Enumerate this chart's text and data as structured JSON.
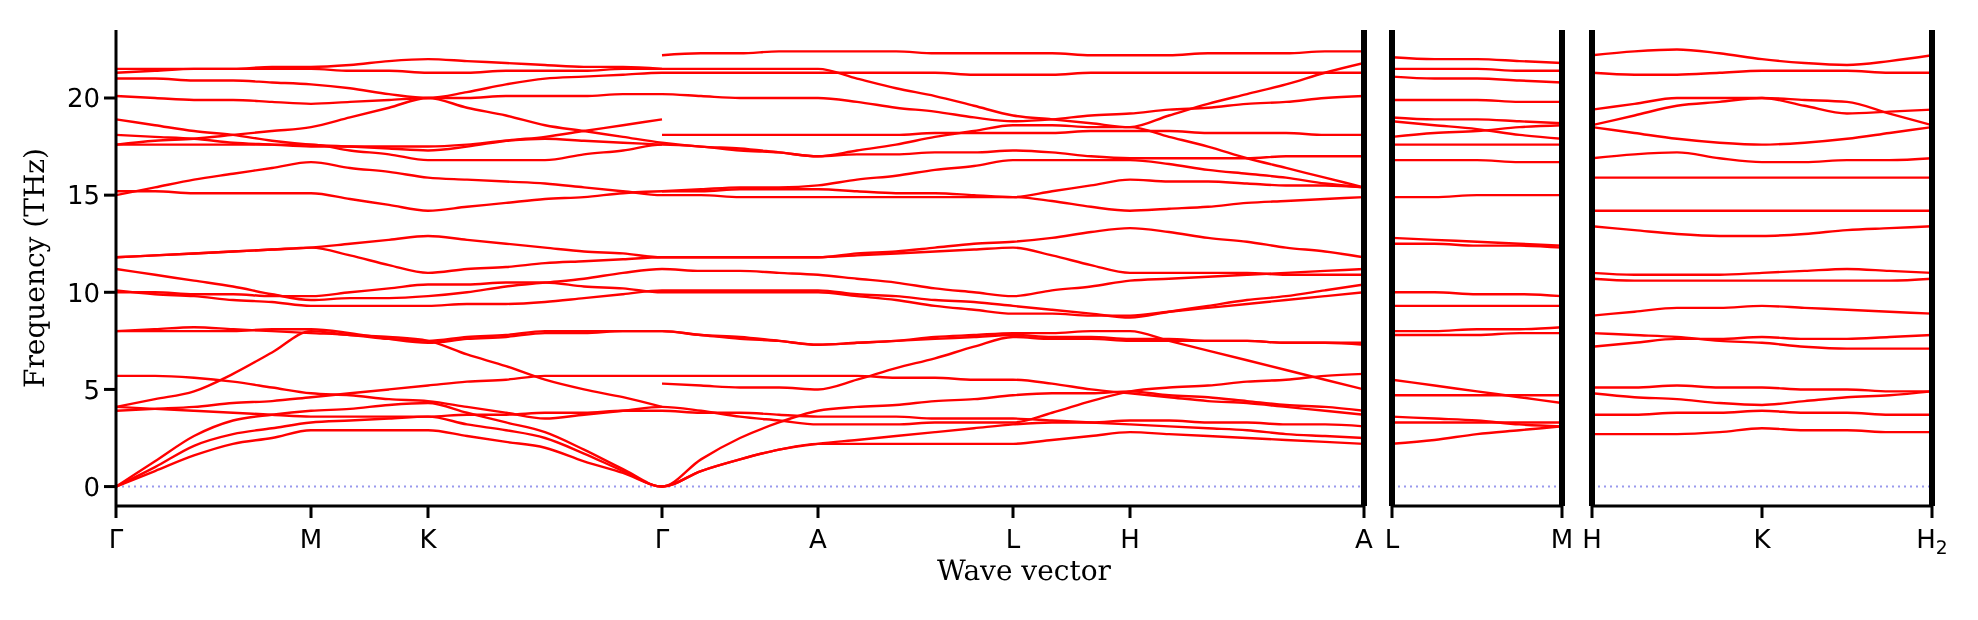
{
  "chart_data": [
    {
      "type": "line",
      "xlabel": "Wave vector",
      "ylabel": "Frequency (THz)",
      "categories": [
        "Γ",
        null,
        null,
        null,
        null,
        "M",
        null,
        null,
        "K",
        null,
        null,
        null,
        null,
        null,
        "Γ",
        null,
        null,
        null,
        "A",
        null,
        null,
        null,
        null,
        "L",
        null,
        null,
        "H",
        null,
        null,
        null,
        null,
        null,
        "A"
      ],
      "ylim": [
        -1,
        23.5
      ],
      "yticks": [
        0,
        5,
        10,
        15,
        20
      ],
      "marker": "none",
      "line_style": "solid",
      "ref_lines": [
        {
          "axis": "y",
          "value": 0,
          "color": "#9999ee",
          "line_style": "dotted"
        }
      ],
      "series": [
        {
          "color": "#ff0000",
          "values": [
            0,
            0.8,
            1.6,
            2.2,
            2.5,
            2.9,
            2.9,
            2.9,
            2.9,
            2.6,
            2.3,
            2.0,
            1.3,
            0.7,
            0,
            0.8,
            1.4,
            1.9,
            2.2,
            2.2,
            2.2,
            2.2,
            2.2,
            2.2,
            2.4,
            2.6,
            2.8,
            2.7,
            2.6,
            2.5,
            2.4,
            2.3,
            2.2
          ]
        },
        {
          "color": "#ff0000",
          "values": [
            0,
            1.0,
            2.1,
            2.7,
            3.0,
            3.3,
            3.4,
            3.5,
            3.6,
            3.2,
            2.9,
            2.5,
            1.7,
            0.8,
            0,
            0.8,
            1.4,
            1.9,
            2.2,
            2.4,
            2.6,
            2.8,
            3.0,
            3.2,
            3.3,
            3.3,
            3.4,
            3.4,
            3.3,
            3.3,
            3.2,
            3.2,
            3.1
          ]
        },
        {
          "color": "#ff0000",
          "values": [
            0,
            1.3,
            2.6,
            3.4,
            3.7,
            3.9,
            4.0,
            4.2,
            4.3,
            3.8,
            3.3,
            2.8,
            1.9,
            0.9,
            0,
            1.4,
            2.5,
            3.3,
            3.9,
            4.1,
            4.2,
            4.4,
            4.5,
            4.7,
            4.8,
            4.8,
            4.9,
            4.7,
            4.6,
            4.4,
            4.2,
            4.1,
            3.9
          ]
        },
        {
          "color": "#ff0000",
          "values": [
            4.1,
            4.0,
            3.9,
            3.8,
            3.7,
            3.6,
            3.6,
            3.6,
            3.6,
            3.7,
            3.7,
            3.8,
            3.8,
            3.9,
            3.9,
            3.8,
            3.8,
            3.7,
            3.6,
            3.6,
            3.6,
            3.5,
            3.5,
            3.5,
            3.4,
            3.3,
            3.2,
            3.1,
            3.0,
            2.9,
            2.7,
            2.6,
            2.5
          ]
        },
        {
          "color": "#ff0000",
          "values": [
            3.9,
            4.0,
            4.1,
            4.3,
            4.4,
            4.6,
            4.8,
            5.0,
            5.2,
            5.4,
            5.5,
            5.7,
            5.7,
            5.7,
            5.7,
            5.7,
            5.7,
            5.7,
            5.7,
            5.7,
            5.6,
            5.6,
            5.5,
            5.5,
            5.3,
            5.0,
            4.8,
            4.6,
            4.4,
            4.3,
            4.1,
            3.9,
            3.7
          ]
        },
        {
          "color": "#ff0000",
          "values": [
            5.7,
            5.7,
            5.6,
            5.4,
            5.1,
            4.8,
            4.7,
            4.5,
            4.4,
            4.1,
            3.8,
            3.5,
            3.7,
            3.9,
            4.1,
            3.9,
            3.6,
            3.4,
            3.2,
            3.2,
            3.2,
            3.3,
            3.3,
            3.3,
            3.8,
            4.4,
            4.9,
            5.1,
            5.2,
            5.4,
            5.5,
            5.7,
            5.8
          ]
        },
        {
          "color": "#ff0000",
          "values": [
            4.1,
            4.5,
            4.9,
            5.8,
            6.9,
            8.0,
            7.8,
            7.7,
            7.5,
            6.8,
            6.2,
            5.5,
            5.0,
            4.6,
            4.1,
            null,
            null,
            null,
            null,
            null,
            null,
            null,
            null,
            null,
            null,
            null,
            null,
            null,
            null,
            null,
            null,
            null,
            null
          ]
        },
        {
          "color": "#ff0000",
          "values": [
            8.0,
            8.0,
            8.0,
            8.0,
            8.1,
            8.1,
            7.9,
            7.6,
            7.4,
            7.6,
            7.7,
            7.9,
            7.9,
            8.0,
            8.0,
            7.8,
            7.7,
            7.5,
            7.3,
            7.4,
            7.5,
            7.6,
            7.7,
            7.8,
            7.7,
            7.7,
            7.6,
            7.6,
            7.5,
            7.5,
            7.4,
            7.4,
            7.3
          ]
        },
        {
          "color": "#ff0000",
          "values": [
            8.0,
            8.1,
            8.2,
            8.1,
            8.0,
            7.9,
            7.8,
            7.6,
            7.5,
            7.7,
            7.8,
            8.0,
            8.0,
            8.0,
            8.0,
            7.8,
            7.6,
            7.5,
            7.3,
            7.4,
            7.5,
            7.7,
            7.8,
            7.9,
            7.9,
            8.0,
            8.0,
            7.5,
            7.0,
            6.5,
            6.0,
            5.5,
            5.0
          ]
        },
        {
          "color": "#ff0000",
          "values": [
            10.1,
            9.9,
            9.8,
            9.6,
            9.5,
            9.3,
            9.3,
            9.3,
            9.3,
            9.4,
            9.4,
            9.5,
            9.7,
            9.9,
            10.1,
            10.1,
            10.1,
            10.1,
            10.1,
            9.9,
            9.8,
            9.6,
            9.5,
            9.3,
            9.1,
            8.9,
            8.7,
            9.0,
            9.3,
            9.6,
            9.8,
            10.1,
            10.4
          ]
        },
        {
          "color": "#ff0000",
          "values": [
            10.0,
            10.0,
            9.9,
            9.9,
            9.8,
            9.8,
            10.0,
            10.2,
            10.4,
            10.4,
            10.5,
            10.5,
            10.3,
            10.2,
            10.0,
            10.0,
            10.0,
            10.0,
            10.0,
            9.8,
            9.6,
            9.3,
            9.1,
            8.9,
            8.9,
            8.8,
            8.8,
            9.0,
            9.2,
            9.4,
            9.6,
            9.8,
            10.0
          ]
        },
        {
          "color": "#ff0000",
          "values": [
            11.2,
            10.9,
            10.6,
            10.3,
            9.9,
            9.6,
            9.7,
            9.7,
            9.8,
            10.0,
            10.3,
            10.5,
            10.7,
            11.0,
            11.2,
            11.1,
            11.1,
            11.0,
            10.9,
            10.7,
            10.5,
            10.2,
            10.0,
            9.8,
            10.1,
            10.3,
            10.6,
            10.7,
            10.8,
            10.9,
            11.0,
            11.1,
            11.2
          ]
        },
        {
          "color": "#ff0000",
          "values": [
            11.8,
            11.9,
            12.0,
            12.1,
            12.2,
            12.3,
            11.9,
            11.4,
            11.0,
            11.2,
            11.3,
            11.5,
            11.6,
            11.7,
            11.8,
            11.8,
            11.8,
            11.8,
            11.8,
            11.9,
            12.0,
            12.1,
            12.2,
            12.3,
            11.9,
            11.4,
            11.0,
            11.0,
            11.0,
            11.0,
            10.9,
            10.9,
            10.9
          ]
        },
        {
          "color": "#ff0000",
          "values": [
            11.8,
            11.9,
            12.0,
            12.1,
            12.2,
            12.3,
            12.5,
            12.7,
            12.9,
            12.7,
            12.5,
            12.3,
            12.1,
            12.0,
            11.8,
            11.8,
            11.8,
            11.8,
            11.8,
            12.0,
            12.1,
            12.3,
            12.5,
            12.6,
            12.8,
            13.1,
            13.3,
            13.1,
            12.8,
            12.6,
            12.3,
            12.1,
            11.8
          ]
        },
        {
          "color": "#ff0000",
          "values": [
            15.2,
            15.2,
            15.1,
            15.1,
            15.1,
            15.1,
            14.8,
            14.5,
            14.2,
            14.4,
            14.6,
            14.8,
            14.9,
            15.1,
            15.2,
            15.2,
            15.3,
            15.3,
            15.3,
            15.2,
            15.1,
            15.1,
            15.0,
            14.9,
            15.2,
            15.5,
            15.8,
            15.7,
            15.7,
            15.6,
            15.5,
            15.5,
            15.4
          ]
        },
        {
          "color": "#ff0000",
          "values": [
            15.0,
            15.4,
            15.8,
            16.1,
            16.4,
            16.7,
            16.4,
            16.2,
            15.9,
            15.8,
            15.7,
            15.6,
            15.4,
            15.2,
            15.0,
            15.0,
            14.9,
            14.9,
            14.9,
            14.9,
            14.9,
            14.9,
            14.9,
            14.9,
            14.7,
            14.4,
            14.2,
            14.3,
            14.4,
            14.6,
            14.7,
            14.8,
            14.9
          ]
        },
        {
          "color": "#ff0000",
          "values": [
            17.6,
            17.6,
            17.6,
            17.6,
            17.6,
            17.6,
            17.3,
            17.1,
            16.8,
            16.8,
            16.8,
            16.8,
            17.1,
            17.3,
            17.6,
            17.5,
            17.3,
            17.2,
            17.0,
            17.1,
            17.1,
            17.2,
            17.2,
            17.3,
            17.2,
            17.0,
            16.9,
            16.9,
            16.9,
            16.9,
            17.0,
            17.0,
            17.0
          ]
        },
        {
          "color": "#ff0000",
          "values": [
            18.1,
            18.0,
            17.9,
            17.7,
            17.6,
            17.5,
            17.5,
            17.5,
            17.5,
            17.6,
            17.8,
            17.9,
            17.8,
            17.7,
            17.6,
            null,
            null,
            null,
            null,
            null,
            null,
            null,
            null,
            null,
            null,
            null,
            null,
            null,
            null,
            null,
            null,
            null,
            null
          ]
        },
        {
          "color": "#ff0000",
          "values": [
            18.9,
            18.6,
            18.3,
            18.1,
            17.8,
            17.6,
            17.5,
            17.4,
            17.3,
            17.5,
            17.8,
            18.0,
            18.3,
            18.6,
            18.9,
            null,
            null,
            null,
            null,
            null,
            null,
            null,
            null,
            null,
            null,
            null,
            null,
            null,
            null,
            null,
            null,
            null,
            null
          ]
        },
        {
          "color": "#ff0000",
          "values": [
            17.6,
            17.8,
            17.9,
            18.1,
            18.3,
            18.5,
            19.0,
            19.5,
            20.0,
            19.5,
            19.1,
            18.6,
            18.3,
            18.0,
            17.7,
            17.5,
            17.4,
            17.2,
            17.0,
            17.3,
            17.6,
            18.0,
            18.3,
            18.6,
            18.6,
            18.5,
            18.5,
            18.0,
            17.5,
            16.9,
            16.4,
            15.9,
            15.4
          ]
        },
        {
          "color": "#ff0000",
          "values": [
            20.1,
            20.0,
            19.9,
            19.9,
            19.8,
            19.7,
            19.8,
            19.9,
            20.0,
            20.0,
            20.1,
            20.1,
            20.1,
            20.2,
            20.2,
            20.1,
            20.0,
            20.0,
            20.0,
            19.8,
            19.5,
            19.3,
            19.0,
            18.8,
            18.9,
            19.1,
            19.2,
            19.4,
            19.5,
            19.7,
            19.8,
            20.0,
            20.1
          ]
        },
        {
          "color": "#ff0000",
          "values": [
            21.0,
            21.0,
            20.9,
            20.9,
            20.8,
            20.7,
            20.5,
            20.2,
            20.0,
            20.3,
            20.7,
            21.0,
            21.1,
            21.2,
            21.3,
            21.3,
            21.3,
            21.3,
            21.3,
            21.3,
            21.3,
            21.3,
            21.2,
            21.2,
            21.2,
            21.3,
            21.3,
            21.3,
            21.3,
            21.3,
            21.3,
            21.3,
            21.3
          ]
        },
        {
          "color": "#ff0000",
          "values": [
            21.5,
            21.5,
            21.5,
            21.5,
            21.5,
            21.5,
            21.4,
            21.4,
            21.3,
            21.3,
            21.4,
            21.4,
            21.4,
            21.5,
            21.5,
            21.5,
            21.5,
            21.5,
            21.5,
            21.0,
            20.5,
            20.1,
            19.6,
            19.1,
            18.9,
            18.7,
            18.5,
            19.1,
            19.7,
            20.2,
            20.7,
            21.3,
            21.8
          ]
        },
        {
          "color": "#ff0000",
          "values": [
            21.3,
            21.4,
            21.5,
            21.5,
            21.6,
            21.6,
            21.7,
            21.9,
            22.0,
            21.9,
            21.8,
            21.7,
            21.6,
            21.6,
            21.5,
            null,
            null,
            null,
            null,
            null,
            null,
            null,
            null,
            null,
            null,
            null,
            null,
            null,
            null,
            null,
            null,
            null,
            null
          ]
        },
        {
          "color": "#ff0000",
          "values": [
            null,
            null,
            null,
            null,
            null,
            null,
            null,
            null,
            null,
            null,
            null,
            null,
            null,
            null,
            5.3,
            5.2,
            5.1,
            5.1,
            5.0,
            5.5,
            6.1,
            6.6,
            7.2,
            7.7,
            7.6,
            7.6,
            7.5,
            7.5,
            7.5,
            7.5,
            7.4,
            7.4,
            7.4
          ]
        },
        {
          "color": "#ff0000",
          "values": [
            null,
            null,
            null,
            null,
            null,
            null,
            null,
            null,
            null,
            null,
            null,
            null,
            null,
            null,
            15.2,
            15.3,
            15.4,
            15.4,
            15.5,
            15.8,
            16.0,
            16.3,
            16.5,
            16.8,
            16.8,
            16.8,
            16.8,
            16.6,
            16.3,
            16.1,
            15.9,
            15.6,
            15.4
          ]
        },
        {
          "color": "#ff0000",
          "values": [
            null,
            null,
            null,
            null,
            null,
            null,
            null,
            null,
            null,
            null,
            null,
            null,
            null,
            null,
            18.1,
            18.1,
            18.1,
            18.1,
            18.1,
            18.1,
            18.1,
            18.2,
            18.2,
            18.2,
            18.2,
            18.3,
            18.3,
            18.3,
            18.2,
            18.2,
            18.2,
            18.1,
            18.1
          ]
        },
        {
          "color": "#ff0000",
          "values": [
            null,
            null,
            null,
            null,
            null,
            null,
            null,
            null,
            null,
            null,
            null,
            null,
            null,
            null,
            22.2,
            22.3,
            22.3,
            22.4,
            22.4,
            22.4,
            22.4,
            22.3,
            22.3,
            22.3,
            22.3,
            22.2,
            22.2,
            22.2,
            22.3,
            22.3,
            22.3,
            22.4,
            22.4
          ]
        }
      ]
    },
    {
      "type": "line",
      "categories": [
        "L",
        null,
        null,
        null,
        "M"
      ],
      "ylim": [
        -1,
        23.5
      ],
      "yticks": [
        0,
        5,
        10,
        15,
        20
      ],
      "tick_labels": "x",
      "marker": "none",
      "line_style": "solid",
      "ref_lines": [
        {
          "axis": "y",
          "value": 0,
          "color": "#9999ee",
          "line_style": "dotted"
        }
      ],
      "series": [
        {
          "color": "#ff0000",
          "values": [
            22.1,
            22.0,
            22.0,
            21.9,
            21.8
          ]
        },
        {
          "color": "#ff0000",
          "values": [
            21.5,
            21.5,
            21.5,
            21.4,
            21.4
          ]
        },
        {
          "color": "#ff0000",
          "values": [
            21.1,
            21.0,
            21.0,
            20.9,
            20.8
          ]
        },
        {
          "color": "#ff0000",
          "values": [
            19.9,
            19.9,
            19.9,
            19.8,
            19.8
          ]
        },
        {
          "color": "#ff0000",
          "values": [
            19.0,
            18.9,
            18.9,
            18.8,
            18.7
          ]
        },
        {
          "color": "#ff0000",
          "values": [
            18.8,
            18.6,
            18.4,
            18.1,
            17.9
          ]
        },
        {
          "color": "#ff0000",
          "values": [
            18.0,
            18.2,
            18.3,
            18.5,
            18.6
          ]
        },
        {
          "color": "#ff0000",
          "values": [
            17.6,
            17.6,
            17.6,
            17.6,
            17.6
          ]
        },
        {
          "color": "#ff0000",
          "values": [
            16.8,
            16.8,
            16.8,
            16.7,
            16.7
          ]
        },
        {
          "color": "#ff0000",
          "values": [
            14.9,
            14.9,
            15.0,
            15.0,
            15.0
          ]
        },
        {
          "color": "#ff0000",
          "values": [
            12.8,
            12.7,
            12.6,
            12.5,
            12.4
          ]
        },
        {
          "color": "#ff0000",
          "values": [
            12.5,
            12.5,
            12.4,
            12.4,
            12.3
          ]
        },
        {
          "color": "#ff0000",
          "values": [
            10.0,
            10.0,
            9.9,
            9.9,
            9.8
          ]
        },
        {
          "color": "#ff0000",
          "values": [
            9.3,
            9.3,
            9.3,
            9.3,
            9.3
          ]
        },
        {
          "color": "#ff0000",
          "values": [
            8.0,
            8.0,
            8.1,
            8.1,
            8.2
          ]
        },
        {
          "color": "#ff0000",
          "values": [
            7.8,
            7.8,
            7.8,
            7.9,
            7.9
          ]
        },
        {
          "color": "#ff0000",
          "values": [
            5.5,
            5.2,
            4.9,
            4.6,
            4.3
          ]
        },
        {
          "color": "#ff0000",
          "values": [
            4.7,
            4.7,
            4.7,
            4.7,
            4.7
          ]
        },
        {
          "color": "#ff0000",
          "values": [
            3.6,
            3.5,
            3.4,
            3.2,
            3.1
          ]
        },
        {
          "color": "#ff0000",
          "values": [
            3.3,
            3.3,
            3.3,
            3.3,
            3.3
          ]
        },
        {
          "color": "#ff0000",
          "values": [
            2.2,
            2.4,
            2.7,
            2.9,
            3.1
          ]
        }
      ]
    },
    {
      "type": "line",
      "categories": [
        "H",
        null,
        null,
        null,
        "K",
        null,
        null,
        null,
        "H$_{2}$"
      ],
      "ylim": [
        -1,
        23.5
      ],
      "yticks": [
        0,
        5,
        10,
        15,
        20
      ],
      "tick_labels": "x",
      "marker": "none",
      "line_style": "solid",
      "ref_lines": [
        {
          "axis": "y",
          "value": 0,
          "color": "#9999ee",
          "line_style": "dotted"
        }
      ],
      "series": [
        {
          "color": "#ff0000",
          "values": [
            22.2,
            22.4,
            22.5,
            22.3,
            22.0,
            21.8,
            21.7,
            21.9,
            22.2
          ]
        },
        {
          "color": "#ff0000",
          "values": [
            21.3,
            21.2,
            21.2,
            21.3,
            21.4,
            21.4,
            21.4,
            21.3,
            21.3
          ]
        },
        {
          "color": "#ff0000",
          "values": [
            19.4,
            19.7,
            20.0,
            20.0,
            20.0,
            19.9,
            19.8,
            19.2,
            18.6
          ]
        },
        {
          "color": "#ff0000",
          "values": [
            18.6,
            19.1,
            19.6,
            19.8,
            20.0,
            19.6,
            19.2,
            19.3,
            19.4
          ]
        },
        {
          "color": "#ff0000",
          "values": [
            18.5,
            18.2,
            17.9,
            17.7,
            17.6,
            17.7,
            17.9,
            18.2,
            18.5
          ]
        },
        {
          "color": "#ff0000",
          "values": [
            16.9,
            17.1,
            17.2,
            16.9,
            16.7,
            16.7,
            16.8,
            16.8,
            16.9
          ]
        },
        {
          "color": "#ff0000",
          "values": [
            15.9,
            15.9,
            15.9,
            15.9,
            15.9,
            15.9,
            15.9,
            15.9,
            15.9
          ]
        },
        {
          "color": "#ff0000",
          "values": [
            14.2,
            14.2,
            14.2,
            14.2,
            14.2,
            14.2,
            14.2,
            14.2,
            14.2
          ]
        },
        {
          "color": "#ff0000",
          "values": [
            13.4,
            13.2,
            13.0,
            12.9,
            12.9,
            13.0,
            13.2,
            13.3,
            13.4
          ]
        },
        {
          "color": "#ff0000",
          "values": [
            11.0,
            10.9,
            10.9,
            10.9,
            11.0,
            11.1,
            11.2,
            11.1,
            11.0
          ]
        },
        {
          "color": "#ff0000",
          "values": [
            10.7,
            10.6,
            10.6,
            10.6,
            10.6,
            10.6,
            10.6,
            10.6,
            10.7
          ]
        },
        {
          "color": "#ff0000",
          "values": [
            8.8,
            9.0,
            9.2,
            9.2,
            9.3,
            9.2,
            9.1,
            9.0,
            8.9
          ]
        },
        {
          "color": "#ff0000",
          "values": [
            7.9,
            7.8,
            7.7,
            7.5,
            7.4,
            7.2,
            7.1,
            7.1,
            7.1
          ]
        },
        {
          "color": "#ff0000",
          "values": [
            7.2,
            7.4,
            7.6,
            7.6,
            7.7,
            7.6,
            7.6,
            7.7,
            7.8
          ]
        },
        {
          "color": "#ff0000",
          "values": [
            5.1,
            5.1,
            5.2,
            5.1,
            5.1,
            5.0,
            5.0,
            4.9,
            4.9
          ]
        },
        {
          "color": "#ff0000",
          "values": [
            4.8,
            4.6,
            4.5,
            4.3,
            4.2,
            4.4,
            4.6,
            4.7,
            4.9
          ]
        },
        {
          "color": "#ff0000",
          "values": [
            3.7,
            3.7,
            3.8,
            3.8,
            3.9,
            3.8,
            3.8,
            3.7,
            3.7
          ]
        },
        {
          "color": "#ff0000",
          "values": [
            2.7,
            2.7,
            2.7,
            2.8,
            3.0,
            2.9,
            2.9,
            2.8,
            2.8
          ]
        }
      ]
    }
  ]
}
